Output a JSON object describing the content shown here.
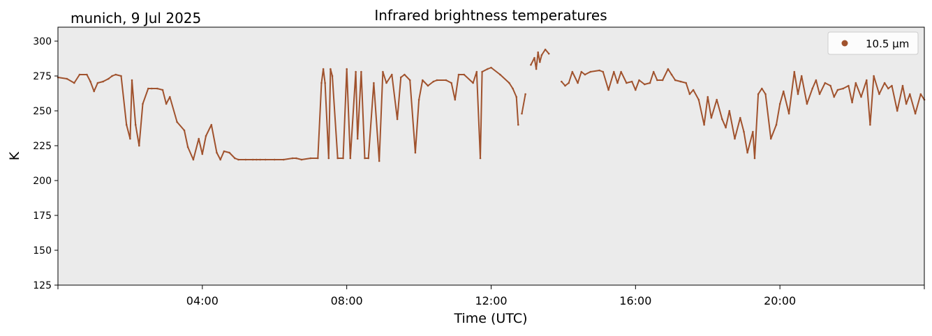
{
  "header": {
    "location_date": "munich, 9 Jul 2025"
  },
  "chart_data": {
    "type": "line",
    "title": "Infrared brightness temperatures",
    "xlabel": "Time (UTC)",
    "ylabel": "K",
    "xlim_hours": [
      0,
      24
    ],
    "ylim": [
      125,
      310
    ],
    "x_ticks_hours": [
      4,
      8,
      12,
      16,
      20
    ],
    "x_tick_labels": [
      "04:00",
      "08:00",
      "12:00",
      "16:00",
      "20:00"
    ],
    "y_ticks": [
      125,
      150,
      175,
      200,
      225,
      250,
      275,
      300
    ],
    "y_tick_labels": [
      "125",
      "150",
      "175",
      "200",
      "225",
      "250",
      "275",
      "300"
    ],
    "legend": {
      "position": "top-right",
      "entries": [
        {
          "label": "10.5 µm",
          "color": "#A0522D"
        }
      ]
    },
    "colors": {
      "series": "#A0522D",
      "plot_bg": "#EBEBEB"
    },
    "series": [
      {
        "name": "10.5 µm",
        "color": "#A0522D",
        "segments": [
          {
            "x": [
              0.0,
              0.25,
              0.45,
              0.6,
              0.8,
              0.9,
              1.0,
              1.1,
              1.25,
              1.4,
              1.5,
              1.6,
              1.75,
              1.9,
              2.0,
              2.05,
              2.15,
              2.25,
              2.35,
              2.5,
              2.6,
              2.75,
              2.9,
              3.0,
              3.1,
              3.3,
              3.5,
              3.6,
              3.75,
              3.9,
              4.0,
              4.1,
              4.25,
              4.4,
              4.5,
              4.6,
              4.75,
              4.9,
              5.0,
              5.2,
              5.4,
              5.5,
              5.6,
              5.75,
              6.0,
              6.25,
              6.5,
              6.6,
              6.75,
              7.0,
              7.2,
              7.3,
              7.35,
              7.4,
              7.5,
              7.55,
              7.6,
              7.75,
              7.9,
              8.0,
              8.1,
              8.25,
              8.3,
              8.4,
              8.5,
              8.6,
              8.75,
              8.9,
              9.0,
              9.1,
              9.25,
              9.4,
              9.5,
              9.6,
              9.75,
              9.9,
              10.0,
              10.1,
              10.25,
              10.4,
              10.5,
              10.75,
              10.9,
              11.0,
              11.1,
              11.25,
              11.5,
              11.6,
              11.7,
              11.75,
              11.9,
              12.0,
              12.25,
              12.5,
              12.6,
              12.7,
              12.75
            ],
            "y": [
              274,
              273,
              270,
              276,
              276,
              271,
              264,
              270,
              271,
              273,
              275,
              276,
              275,
              240,
              230,
              272,
              240,
              225,
              255,
              266,
              266,
              266,
              265,
              255,
              260,
              242,
              236,
              224,
              215,
              230,
              219,
              232,
              240,
              220,
              215,
              221,
              220,
              216,
              215,
              215,
              215,
              215,
              215,
              215,
              215,
              215,
              216,
              216,
              215,
              216,
              216,
              270,
              280,
              270,
              216,
              280,
              275,
              216,
              216,
              280,
              216,
              278,
              230,
              278,
              216,
              216,
              270,
              214,
              278,
              270,
              276,
              244,
              274,
              276,
              272,
              220,
              258,
              272,
              268,
              271,
              272,
              272,
              270,
              258,
              276,
              276,
              270,
              278,
              216,
              278,
              280,
              281,
              276,
              270,
              266,
              260,
              240
            ]
          },
          {
            "x": [
              12.85,
              12.95
            ],
            "y": [
              248,
              262
            ]
          },
          {
            "x": [
              13.1,
              13.2,
              13.25,
              13.3,
              13.35,
              13.4,
              13.5,
              13.6
            ],
            "y": [
              283,
              288,
              280,
              292,
              285,
              290,
              294,
              291
            ]
          },
          {
            "x": [
              13.95,
              14.05,
              14.15,
              14.25,
              14.4,
              14.5,
              14.6,
              14.75,
              15.0,
              15.1,
              15.25,
              15.4,
              15.5,
              15.6,
              15.75,
              15.9,
              16.0,
              16.1,
              16.25,
              16.4,
              16.5,
              16.6,
              16.75,
              16.9,
              17.0,
              17.1,
              17.25,
              17.4,
              17.5,
              17.6,
              17.75,
              17.9,
              18.0,
              18.1,
              18.25,
              18.4,
              18.5,
              18.6,
              18.75,
              18.9,
              19.0,
              19.1,
              19.25,
              19.3,
              19.4,
              19.5,
              19.6,
              19.75,
              19.9,
              20.0,
              20.1,
              20.25,
              20.4,
              20.5,
              20.6,
              20.75,
              20.9,
              21.0,
              21.1,
              21.25,
              21.4,
              21.5,
              21.6,
              21.75,
              21.9,
              22.0,
              22.1,
              22.25,
              22.4,
              22.5,
              22.6,
              22.75,
              22.9,
              23.0,
              23.1,
              23.25,
              23.4,
              23.5,
              23.6,
              23.75,
              23.9,
              24.0
            ],
            "y": [
              271,
              268,
              270,
              278,
              270,
              278,
              276,
              278,
              279,
              278,
              265,
              278,
              270,
              278,
              270,
              271,
              265,
              272,
              269,
              270,
              278,
              272,
              272,
              280,
              276,
              272,
              271,
              270,
              262,
              265,
              258,
              240,
              260,
              245,
              258,
              244,
              238,
              250,
              230,
              245,
              235,
              220,
              235,
              216,
              262,
              266,
              262,
              230,
              240,
              255,
              264,
              248,
              278,
              262,
              275,
              255,
              266,
              272,
              262,
              270,
              268,
              260,
              265,
              266,
              268,
              256,
              270,
              260,
              272,
              240,
              275,
              262,
              270,
              266,
              268,
              250,
              268,
              255,
              262,
              248,
              262,
              258
            ]
          }
        ]
      }
    ]
  }
}
